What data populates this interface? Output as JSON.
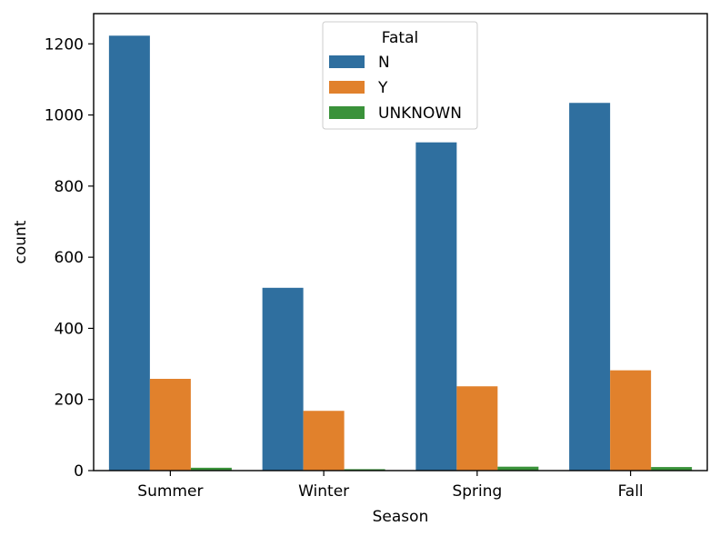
{
  "chart_data": {
    "type": "bar",
    "categories": [
      "Summer",
      "Winter",
      "Spring",
      "Fall"
    ],
    "series": [
      {
        "name": "N",
        "color": "#2f6f9f",
        "values": [
          1223,
          514,
          923,
          1034
        ]
      },
      {
        "name": "Y",
        "color": "#e1812c",
        "values": [
          258,
          168,
          237,
          282
        ]
      },
      {
        "name": "UNKNOWN",
        "color": "#3a923a",
        "values": [
          8,
          4,
          11,
          10
        ]
      }
    ],
    "xlabel": "Season",
    "ylabel": "count",
    "ylim": [
      0,
      1285
    ],
    "yticks": [
      0,
      200,
      400,
      600,
      800,
      1000,
      1200
    ],
    "legend": {
      "title": "Fatal",
      "position": "top-center"
    },
    "grid": false
  }
}
